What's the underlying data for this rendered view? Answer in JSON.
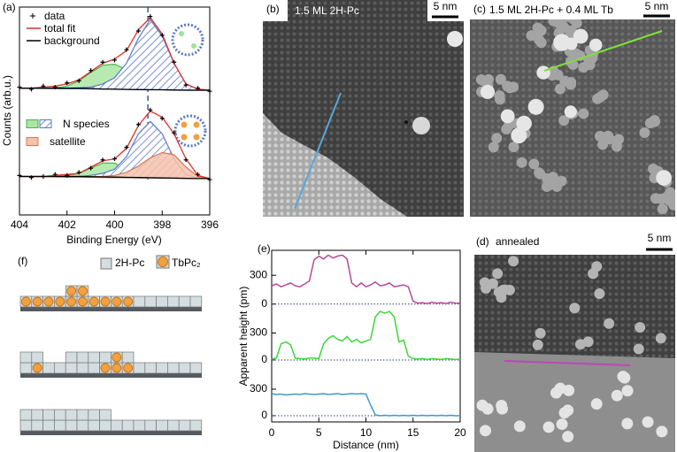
{
  "chart_data": [
    {
      "type": "line",
      "label": "(a)",
      "xlabel": "Binding Energy (eV)",
      "ylabel": "Counts (arb.u.)",
      "xlim": [
        404,
        396
      ],
      "xticks": [
        404,
        402,
        400,
        398,
        396
      ],
      "ylim": [
        0,
        10
      ],
      "reference_x": 398.6,
      "x": [
        404,
        403.5,
        403,
        402.5,
        402,
        401.5,
        401,
        400.5,
        400,
        399.5,
        399,
        398.5,
        398,
        397.5,
        397,
        396.5,
        396
      ],
      "series": [
        {
          "name": "data",
          "color": "#000000",
          "mode": "markers",
          "values": [
            6.15,
            6.05,
            6.2,
            6.15,
            6.35,
            6.45,
            6.95,
            7.35,
            7.45,
            7.95,
            8.85,
            9.55,
            8.65,
            7.35,
            6.25,
            6.1,
            5.95
          ]
        },
        {
          "name": "total fit",
          "color": "#e0302a",
          "mode": "line",
          "values": [
            6.1,
            6.1,
            6.15,
            6.2,
            6.3,
            6.5,
            6.9,
            7.3,
            7.5,
            7.9,
            8.9,
            9.5,
            8.7,
            7.3,
            6.3,
            6.05,
            6.0
          ]
        },
        {
          "name": "background",
          "color": "#000000",
          "mode": "line",
          "values": [
            6.1,
            6.1,
            6.1,
            6.1,
            6.1,
            6.1,
            6.08,
            6.06,
            6.05,
            6.04,
            6.03,
            6.02,
            6.02,
            6.01,
            6.0,
            6.0,
            6.0
          ]
        },
        {
          "name": "N species",
          "color": "#4fae4f",
          "fill": "#a9e6a3",
          "mode": "area",
          "values": [
            6.1,
            6.1,
            6.1,
            6.12,
            6.2,
            6.45,
            6.85,
            7.2,
            7.25,
            7.0,
            6.6,
            6.3,
            6.1,
            6.05,
            6.0,
            6.0,
            6.0
          ]
        },
        {
          "name": "N species",
          "color": "#5a78c8",
          "fill": "#ffffff",
          "mode": "area",
          "hatch": true,
          "values": [
            6.1,
            6.1,
            6.1,
            6.1,
            6.1,
            6.12,
            6.15,
            6.3,
            6.6,
            7.3,
            8.5,
            9.4,
            8.6,
            7.3,
            6.3,
            6.05,
            6.0
          ]
        },
        {
          "name": "data",
          "color": "#000000",
          "mode": "markers",
          "values": [
            1.9,
            1.8,
            1.85,
            1.95,
            1.9,
            2.05,
            2.25,
            2.65,
            2.7,
            3.25,
            4.35,
            5.05,
            4.65,
            3.95,
            2.65,
            1.95,
            1.7
          ]
        },
        {
          "name": "total fit",
          "color": "#e0302a",
          "mode": "line",
          "values": [
            1.85,
            1.85,
            1.85,
            1.9,
            1.95,
            2.0,
            2.3,
            2.6,
            2.7,
            3.2,
            4.3,
            5.0,
            4.7,
            3.9,
            2.7,
            1.9,
            1.75
          ]
        },
        {
          "name": "background",
          "color": "#000000",
          "mode": "line",
          "values": [
            1.85,
            1.85,
            1.85,
            1.85,
            1.85,
            1.85,
            1.84,
            1.83,
            1.82,
            1.81,
            1.8,
            1.79,
            1.78,
            1.77,
            1.76,
            1.75,
            1.75
          ]
        },
        {
          "name": "N species",
          "color": "#4fae4f",
          "fill": "#a9e6a3",
          "mode": "area",
          "values": [
            1.85,
            1.85,
            1.85,
            1.85,
            1.9,
            2.0,
            2.25,
            2.5,
            2.5,
            2.2,
            1.95,
            1.85,
            1.8,
            1.77,
            1.76,
            1.75,
            1.75
          ]
        },
        {
          "name": "N species",
          "color": "#5a78c8",
          "fill": "#ffffff",
          "mode": "area",
          "hatch": true,
          "values": [
            1.85,
            1.85,
            1.85,
            1.85,
            1.85,
            1.86,
            1.9,
            2.0,
            2.2,
            2.8,
            3.9,
            4.5,
            3.9,
            2.7,
            1.95,
            1.78,
            1.75
          ]
        },
        {
          "name": "satellite",
          "color": "#d07a5a",
          "fill": "#f6c2ab",
          "mode": "area",
          "values": [
            1.85,
            1.85,
            1.85,
            1.85,
            1.85,
            1.85,
            1.84,
            1.85,
            1.9,
            2.05,
            2.35,
            2.75,
            3.0,
            2.9,
            2.3,
            1.85,
            1.75
          ]
        }
      ]
    },
    {
      "type": "line",
      "label": "(e)",
      "xlim": [
        0,
        20
      ],
      "xticks": [
        0,
        5,
        10,
        15,
        20
      ],
      "ylim": [
        -30,
        560
      ],
      "yticks": [
        0,
        300
      ],
      "zero_line": true,
      "x": [
        0,
        0.5,
        1,
        1.5,
        2,
        2.5,
        3,
        3.5,
        4,
        4.5,
        5,
        5.5,
        6,
        6.5,
        7,
        7.5,
        8,
        8.5,
        9,
        9.5,
        10,
        10.5,
        11,
        11.5,
        12,
        12.5,
        13,
        13.5,
        14,
        14.5,
        15,
        15.5,
        16,
        16.5,
        17,
        17.5,
        18,
        18.5,
        19,
        19.5,
        20
      ],
      "series": [
        {
          "color": "#b8489a",
          "values": [
            190,
            210,
            180,
            200,
            220,
            190,
            180,
            210,
            240,
            460,
            500,
            470,
            510,
            480,
            500,
            510,
            470,
            220,
            180,
            220,
            180,
            200,
            230,
            190,
            200,
            220,
            180,
            190,
            200,
            180,
            30,
            10,
            15,
            5,
            20,
            10,
            15,
            5,
            20,
            10,
            10
          ]
        }
      ]
    },
    {
      "type": "line",
      "ylabel": "Apparent height (pm)",
      "xlim": [
        0,
        20
      ],
      "ylim": [
        -30,
        590
      ],
      "yticks": [
        0,
        300
      ],
      "zero_line": true,
      "x": [
        0,
        0.5,
        1,
        1.5,
        2,
        2.5,
        3,
        3.5,
        4,
        4.5,
        5,
        5.5,
        6,
        6.5,
        7,
        7.5,
        8,
        8.5,
        9,
        9.5,
        10,
        10.5,
        11,
        11.5,
        12,
        12.5,
        13,
        13.5,
        14,
        14.5,
        15,
        15.5,
        16,
        16.5,
        17,
        17.5,
        18,
        18.5,
        19,
        19.5,
        20
      ],
      "series": [
        {
          "color": "#3fd63a",
          "values": [
            10,
            20,
            180,
            200,
            170,
            20,
            15,
            10,
            20,
            20,
            15,
            180,
            240,
            270,
            230,
            210,
            260,
            200,
            230,
            190,
            210,
            230,
            480,
            540,
            520,
            540,
            480,
            200,
            220,
            40,
            15,
            10,
            15,
            5,
            15,
            10,
            5,
            15,
            10,
            5,
            10
          ]
        }
      ]
    },
    {
      "type": "line",
      "xlabel": "Distance (nm)",
      "xlim": [
        0,
        20
      ],
      "xticks": [
        0,
        5,
        10,
        15,
        20
      ],
      "ylim": [
        -70,
        600
      ],
      "yticks": [
        0,
        300
      ],
      "zero_line": true,
      "x": [
        0,
        0.5,
        1,
        1.5,
        2,
        2.5,
        3,
        3.5,
        4,
        4.5,
        5,
        5.5,
        6,
        6.5,
        7,
        7.5,
        8,
        8.5,
        9,
        9.5,
        10,
        10.5,
        11,
        11.5,
        12,
        12.5,
        13,
        13.5,
        14,
        14.5,
        15,
        15.5,
        16,
        16.5,
        17,
        17.5,
        18,
        18.5,
        19,
        19.5,
        20
      ],
      "series": [
        {
          "color": "#3c9cc6",
          "values": [
            250,
            240,
            245,
            235,
            240,
            245,
            240,
            250,
            245,
            240,
            245,
            250,
            240,
            245,
            250,
            240,
            245,
            250,
            245,
            250,
            245,
            120,
            10,
            0,
            5,
            0,
            5,
            0,
            5,
            0,
            5,
            0,
            5,
            0,
            5,
            0,
            5,
            0,
            5,
            0,
            0
          ]
        }
      ]
    }
  ],
  "images": [
    {
      "label": "(b)",
      "caption": "1.5 ML 2H-Pc",
      "scale": "5 nm"
    },
    {
      "label": "(c)",
      "caption": "1.5 ML 2H-Pc + 0.4 ML Tb",
      "scale": "5 nm"
    },
    {
      "label": "(d)",
      "caption": "annealed",
      "scale": "5 nm"
    }
  ],
  "schematic": {
    "label": "(f)",
    "legend": [
      "2H-Pc",
      "TbPc₂"
    ]
  }
}
